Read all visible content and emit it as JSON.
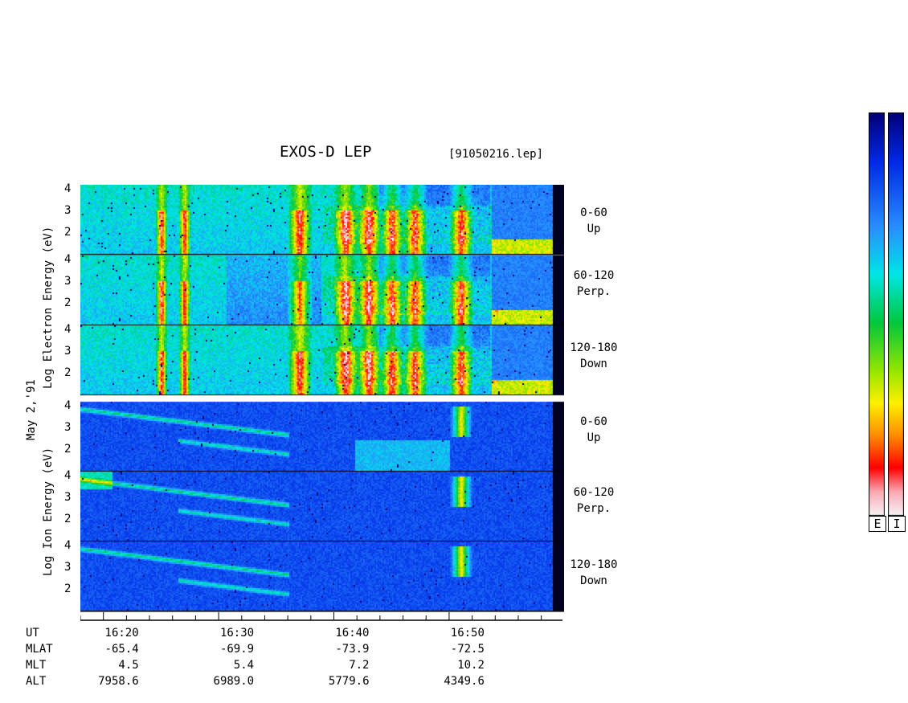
{
  "title": "EXOS-D LEP",
  "filename": "[91050216.lep]",
  "date_label": "May  2,'91",
  "electron_label": "Log  Electron  Energy (eV)",
  "ion_label": "Log  Ion  Energy (eV)",
  "panels": [
    {
      "species": "Electron",
      "pitch_range": "0-60",
      "direction": "Up"
    },
    {
      "species": "Electron",
      "pitch_range": "60-120",
      "direction": "Perp."
    },
    {
      "species": "Electron",
      "pitch_range": "120-180",
      "direction": "Down"
    },
    {
      "species": "Ion",
      "pitch_range": "0-60",
      "direction": "Up"
    },
    {
      "species": "Ion",
      "pitch_range": "60-120",
      "direction": "Perp."
    },
    {
      "species": "Ion",
      "pitch_range": "120-180",
      "direction": "Down"
    }
  ],
  "y_ticks": [
    "4",
    "3",
    "2"
  ],
  "colorbar_labels": [
    "E",
    "I"
  ],
  "colors": {
    "scale": [
      "#f4f4f8",
      "#f6c0c8",
      "#ff0000",
      "#ff8000",
      "#ffff00",
      "#00c000",
      "#00ffd0",
      "#40a0ff",
      "#0040ff",
      "#000090"
    ]
  },
  "info_rows": [
    {
      "label": "UT",
      "values": [
        "16:20",
        "16:30",
        "16:40",
        "16:50"
      ]
    },
    {
      "label": "MLAT",
      "values": [
        "-65.4",
        "-69.9",
        "-73.9",
        "-72.5"
      ]
    },
    {
      "label": "MLT",
      "values": [
        "4.5",
        "5.4",
        "7.2",
        "10.2"
      ]
    },
    {
      "label": "ALT",
      "values": [
        "7958.6",
        "6989.0",
        "5779.6",
        "4349.6"
      ]
    }
  ],
  "chart_data": {
    "type": "heatmap",
    "title": "EXOS-D LEP",
    "x_range": [
      "16:18",
      "16:59"
    ],
    "ylim": [
      1,
      4.2
    ],
    "y_scale": "log10 energy (eV)",
    "electron_bursts_ut": [
      "16:25",
      "16:27",
      "16:37",
      "16:41",
      "16:43",
      "16:45",
      "16:47",
      "16:51"
    ],
    "ion_conic_ut": "16:51"
  }
}
